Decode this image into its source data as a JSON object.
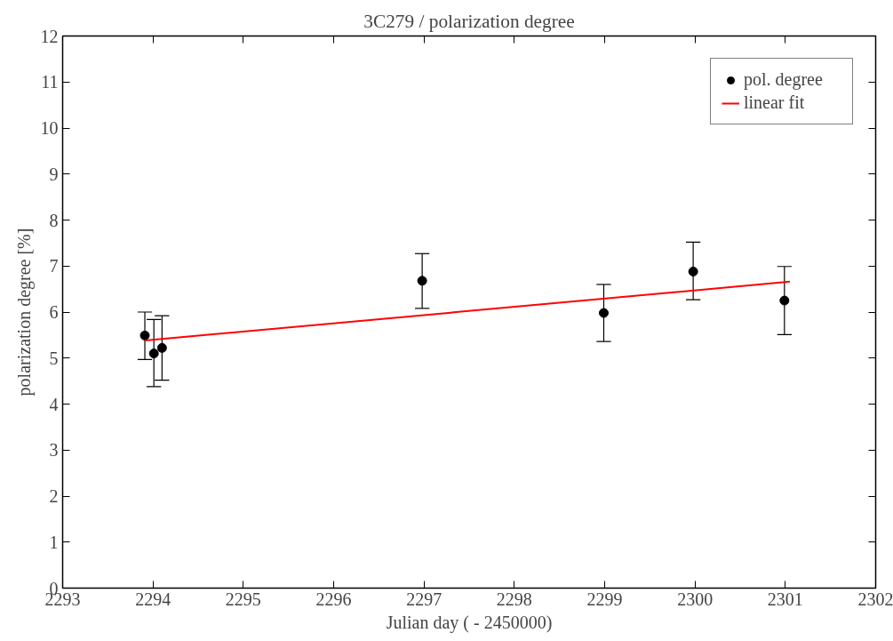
{
  "chart_data": {
    "type": "scatter",
    "title": "3C279 / polarization degree",
    "xlabel": "Julian day ( - 2450000)",
    "ylabel": "polarization degree [%]",
    "xlim": [
      2293,
      2302
    ],
    "ylim": [
      0,
      12
    ],
    "xticks": [
      2293,
      2294,
      2295,
      2296,
      2297,
      2298,
      2299,
      2300,
      2301,
      2302
    ],
    "yticks": [
      0,
      1,
      2,
      3,
      4,
      5,
      6,
      7,
      8,
      9,
      10,
      11,
      12
    ],
    "grid": false,
    "legend": "top right",
    "series": [
      {
        "name": "pol. degree",
        "marker": "circle",
        "color": "#000000",
        "x": [
          2293.91,
          2294.01,
          2294.1,
          2296.98,
          2298.99,
          2299.98,
          2300.99
        ],
        "values": [
          5.49,
          5.1,
          5.22,
          6.68,
          5.98,
          6.88,
          6.25
        ],
        "errors": [
          [
            4.97,
            6.0
          ],
          [
            4.38,
            5.84
          ],
          [
            4.52,
            5.92
          ],
          [
            6.08,
            7.27
          ],
          [
            5.36,
            6.6
          ],
          [
            6.27,
            7.52
          ],
          [
            5.51,
            6.99
          ]
        ]
      },
      {
        "name": "linear fit",
        "type": "line",
        "marker": "none",
        "color": "#ff0000",
        "x": [
          2293.91,
          2301.05
        ],
        "values": [
          5.38,
          6.66
        ]
      }
    ]
  }
}
